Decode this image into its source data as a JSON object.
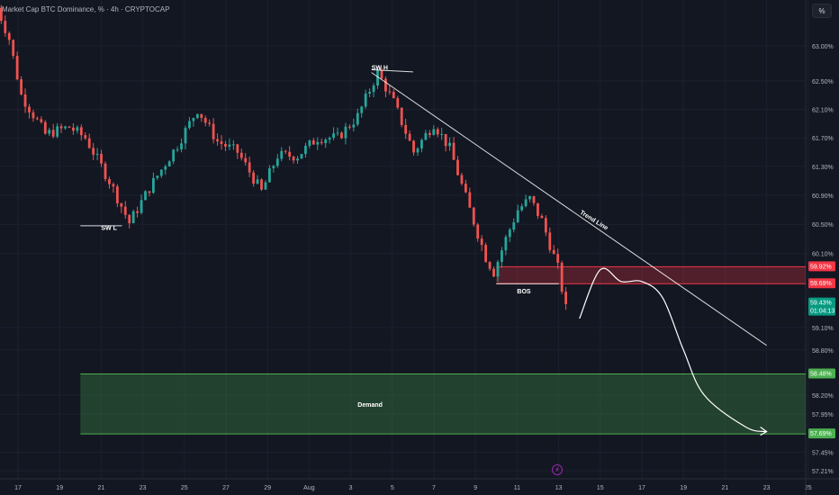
{
  "header": {
    "title": "Market Cap BTC Dominance, % · 4h · CRYPTOCAP"
  },
  "toolbar": {
    "scale_label": "%"
  },
  "status": {
    "icon": "lightning-icon"
  },
  "colors": {
    "background": "#131722",
    "grid": "#1c2030",
    "up": "#26a69a",
    "down": "#ef5350",
    "axis_text": "#b2b5be",
    "zone_supply": "#f23645",
    "zone_demand": "#4caf50",
    "drawing": "#ffffff"
  },
  "chart_data": {
    "type": "candlestick",
    "title": "Market Cap BTC Dominance, % · 4h · CRYPTOCAP",
    "x_ticks": [
      "17",
      "19",
      "21",
      "23",
      "25",
      "27",
      "29",
      "Aug",
      "3",
      "5",
      "7",
      "9",
      "11",
      "13",
      "15",
      "17",
      "19",
      "21",
      "23",
      "25"
    ],
    "y_ticks": [
      "63.00%",
      "62.50%",
      "62.10%",
      "61.70%",
      "61.30%",
      "60.90%",
      "60.50%",
      "60.10%",
      "59.10%",
      "58.80%",
      "58.20%",
      "57.95%",
      "57.45%",
      "57.21%"
    ],
    "ylim": [
      57.0,
      63.6
    ],
    "y_scale": "log",
    "grid": true,
    "price_labels": [
      {
        "text": "59.92%",
        "value": 59.92,
        "color": "#f23645"
      },
      {
        "text": "59.69%",
        "value": 59.69,
        "color": "#f23645"
      },
      {
        "text": "59.43%",
        "sub": "01:04:13",
        "value": 59.43,
        "color": "#089981"
      },
      {
        "text": "58.48%",
        "value": 58.48,
        "color": "#4caf50"
      },
      {
        "text": "57.69%",
        "value": 57.69,
        "color": "#4caf50"
      }
    ],
    "zones": [
      {
        "name": "supply",
        "from_date": "Aug 9",
        "to_date": "Aug 25",
        "top": 59.92,
        "bottom": 59.69,
        "label": ""
      },
      {
        "name": "demand",
        "from_date": "Jul 20",
        "to_date": "Aug 25",
        "top": 58.48,
        "bottom": 57.69,
        "label": "Demand"
      }
    ],
    "annotations": [
      {
        "text": "SW L",
        "date": "Jul 21",
        "value": 60.42
      },
      {
        "text": "SW H",
        "date": "Aug 3",
        "value": 62.66
      },
      {
        "text": "BOS",
        "date": "Aug 10",
        "value": 59.56
      },
      {
        "text": "Trend Line",
        "date": "Aug 13",
        "value": 60.65
      }
    ],
    "lines": [
      {
        "name": "trend-line",
        "points": [
          [
            "Aug 3",
            62.62
          ],
          [
            "Aug 22",
            58.86
          ]
        ]
      },
      {
        "name": "swing-high-line",
        "points": [
          [
            "Aug 3",
            62.66
          ],
          [
            "Aug 5",
            62.63
          ]
        ]
      },
      {
        "name": "swing-low-line",
        "points": [
          [
            "Jul 20",
            60.48
          ],
          [
            "Jul 22",
            60.48
          ]
        ]
      },
      {
        "name": "bos-line",
        "points": [
          [
            "Aug 9",
            59.69
          ],
          [
            "Aug 12",
            59.69
          ]
        ]
      }
    ],
    "projection": [
      [
        "Aug 13",
        59.22
      ],
      [
        "Aug 14",
        59.88
      ],
      [
        "Aug 15",
        59.72
      ],
      [
        "Aug 16",
        59.72
      ],
      [
        "Aug 17",
        59.5
      ],
      [
        "Aug 18",
        58.8
      ],
      [
        "Aug 19",
        58.2
      ],
      [
        "Aug 21",
        57.78
      ],
      [
        "Aug 22",
        57.72
      ]
    ],
    "candle_path": [
      [
        0,
        63.55
      ],
      [
        3,
        63.1
      ],
      [
        6,
        62.3
      ],
      [
        12,
        61.75
      ],
      [
        18,
        61.85
      ],
      [
        22,
        61.7
      ],
      [
        28,
        61.1
      ],
      [
        33,
        60.52
      ],
      [
        38,
        61.0
      ],
      [
        45,
        61.6
      ],
      [
        50,
        62.1
      ],
      [
        55,
        61.65
      ],
      [
        60,
        61.5
      ],
      [
        66,
        60.95
      ],
      [
        70,
        61.45
      ],
      [
        75,
        61.45
      ],
      [
        80,
        61.7
      ],
      [
        85,
        61.7
      ],
      [
        90,
        62.0
      ],
      [
        95,
        62.62
      ],
      [
        99,
        62.2
      ],
      [
        104,
        61.5
      ],
      [
        109,
        61.9
      ],
      [
        113,
        61.55
      ],
      [
        118,
        60.7
      ],
      [
        122,
        60.05
      ],
      [
        124,
        59.85
      ],
      [
        127,
        60.3
      ],
      [
        130,
        60.7
      ],
      [
        133,
        60.85
      ],
      [
        136,
        60.55
      ],
      [
        140,
        59.9
      ],
      [
        142,
        59.35
      ]
    ],
    "candle_count": 143,
    "first_date": "Jul 16",
    "last_date": "Aug 12"
  }
}
